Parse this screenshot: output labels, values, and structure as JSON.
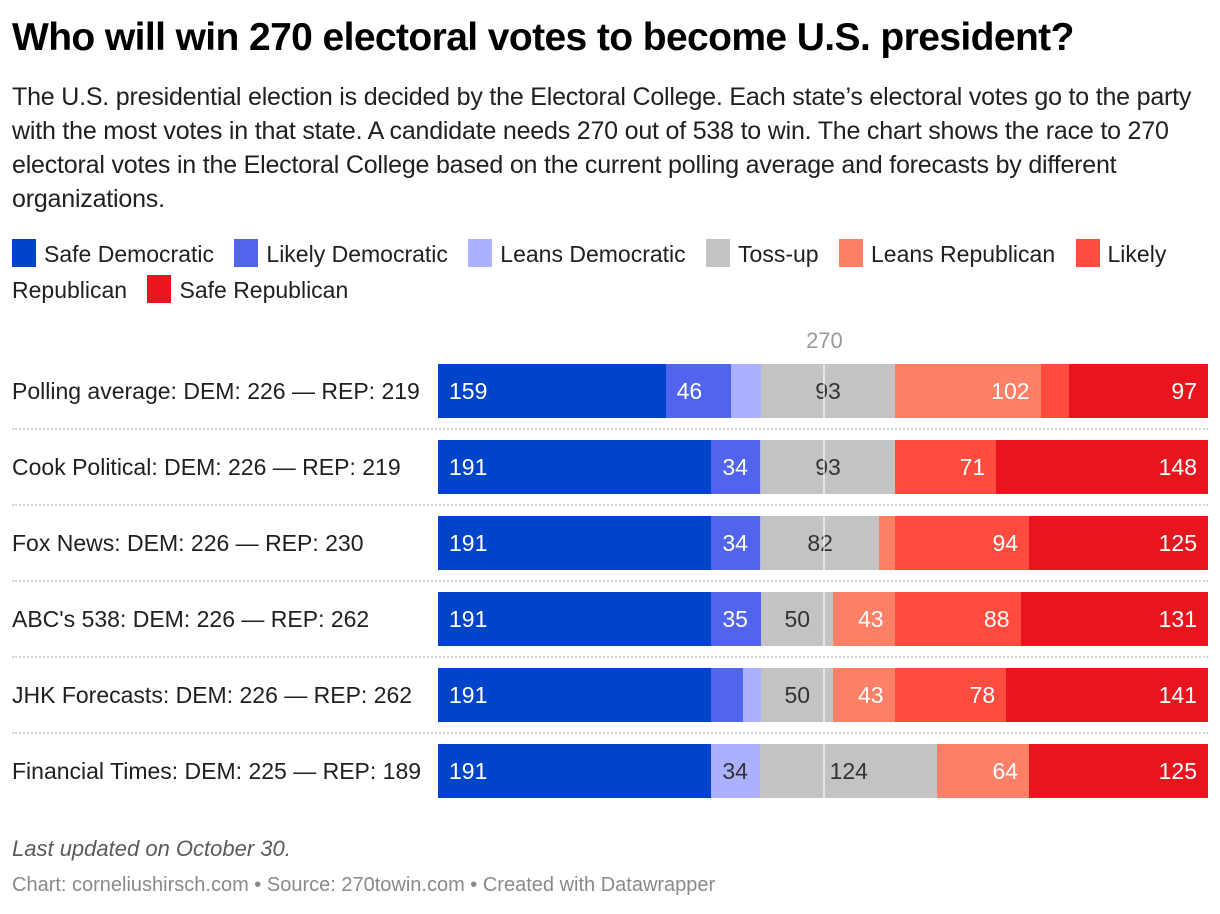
{
  "header": {
    "title": "Who will win 270 electoral votes to become U.S. president?",
    "description": "The U.S. presidential election is decided by the Electoral College. Each state’s electoral votes go to the party with the most votes in that state. A candidate needs 270 out of 538 to win. The chart shows the race to 270 electoral votes in the Electoral College based on the current polling average and forecasts by different organizations."
  },
  "legend": [
    {
      "label": "Safe Democratic",
      "color": "#0044CA"
    },
    {
      "label": "Likely Democratic",
      "color": "#5064ED"
    },
    {
      "label": "Leans Democratic",
      "color": "#ABB0FF"
    },
    {
      "label": "Toss-up",
      "color": "#C3C3C3"
    },
    {
      "label": "Leans Republican",
      "color": "#FF7F67"
    },
    {
      "label": "Likely Republican",
      "color": "#FF4C3F"
    },
    {
      "label": "Safe Republican",
      "color": "#E8151F"
    }
  ],
  "chart_data": {
    "type": "bar",
    "orientation": "horizontal",
    "stacked": true,
    "title": "Who will win 270 electoral votes to become U.S. president?",
    "xlabel": "",
    "ylabel": "",
    "xlim": [
      0,
      538
    ],
    "reference_line": {
      "value": 270,
      "label": "270"
    },
    "legend_position": "top",
    "categories": [
      "Polling average: DEM: 226 — REP: 219",
      "Cook Political: DEM: 226 — REP: 219",
      "Fox News: DEM: 226 — REP: 230",
      "ABC's 538: DEM: 226 — REP: 262",
      "JHK Forecasts: DEM: 226 — REP: 262",
      "Financial Times: DEM: 225 — REP: 189"
    ],
    "series": [
      {
        "name": "Safe Democratic",
        "color": "#0044CA",
        "label_color": "#ffffff",
        "values": [
          159,
          191,
          191,
          191,
          191,
          191
        ],
        "show_labels": [
          true,
          true,
          true,
          true,
          true,
          true
        ]
      },
      {
        "name": "Likely Democratic",
        "color": "#5064ED",
        "label_color": "#ffffff",
        "values": [
          46,
          34,
          34,
          35,
          22,
          0
        ],
        "show_labels": [
          true,
          true,
          true,
          true,
          false,
          false
        ]
      },
      {
        "name": "Leans Democratic",
        "color": "#ABB0FF",
        "label_color": "#333333",
        "values": [
          21,
          1,
          1,
          0,
          13,
          34
        ],
        "show_labels": [
          false,
          false,
          false,
          false,
          false,
          true
        ]
      },
      {
        "name": "Toss-up",
        "color": "#C3C3C3",
        "label_color": "#333333",
        "values": [
          93,
          93,
          82,
          50,
          50,
          124
        ],
        "show_labels": [
          true,
          true,
          true,
          true,
          true,
          true
        ]
      },
      {
        "name": "Leans Republican",
        "color": "#FF7F67",
        "label_color": "#ffffff",
        "values": [
          102,
          0,
          11,
          43,
          43,
          64
        ],
        "show_labels": [
          true,
          false,
          false,
          true,
          true,
          true
        ]
      },
      {
        "name": "Likely Republican",
        "color": "#FF4C3F",
        "label_color": "#ffffff",
        "values": [
          20,
          71,
          94,
          88,
          78,
          0
        ],
        "show_labels": [
          false,
          true,
          true,
          true,
          true,
          false
        ]
      },
      {
        "name": "Safe Republican",
        "color": "#E8151F",
        "label_color": "#ffffff",
        "values": [
          97,
          148,
          125,
          131,
          141,
          125
        ],
        "show_labels": [
          true,
          true,
          true,
          true,
          true,
          true
        ]
      }
    ]
  },
  "notes": "Last updated on October 30.",
  "footer": "Chart: corneliushirsch.com • Source: 270towin.com • Created with Datawrapper"
}
